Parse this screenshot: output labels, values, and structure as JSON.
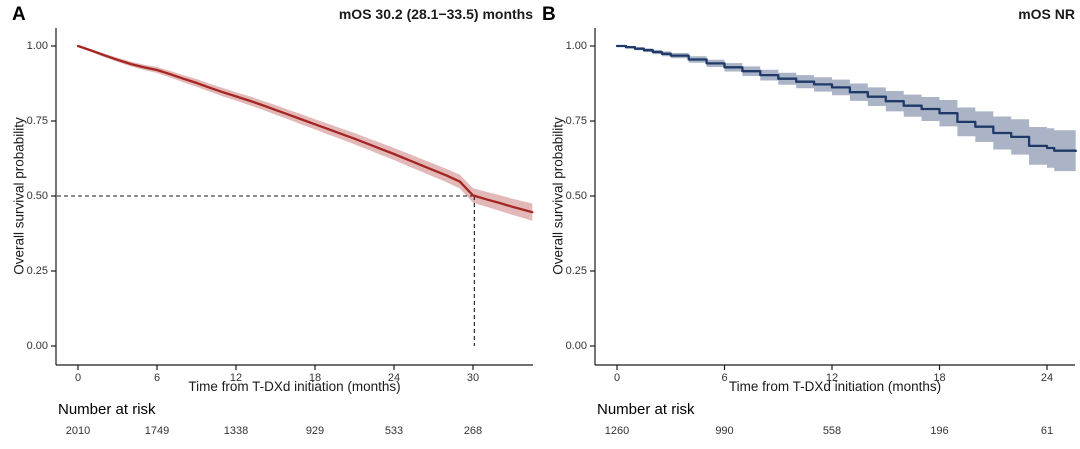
{
  "figure": {
    "background": "#ffffff",
    "axis_color": "#1a1a1a",
    "tick_text_color": "#333333",
    "dashed_line_color": "#1a1a1a"
  },
  "chart_data": [
    {
      "id": "A",
      "panel_label": "A",
      "type": "line",
      "subtype": "kaplan-meier",
      "title": "mOS 30.2 (28.1−33.5) months",
      "xlabel": "Time from T-DXd initiation (months)",
      "ylabel": "Overall survival probability",
      "x_ticks": [
        0,
        6,
        12,
        18,
        24,
        30
      ],
      "y_ticks": [
        {
          "value": 1.0,
          "label": "1.00"
        },
        {
          "value": 0.75,
          "label": "0.75"
        },
        {
          "value": 0.5,
          "label": "0.50"
        },
        {
          "value": 0.25,
          "label": "0.25"
        },
        {
          "value": 0.0,
          "label": "0.00"
        }
      ],
      "xlim": [
        0,
        34.5
      ],
      "ylim": [
        0,
        1
      ],
      "grid": false,
      "legend": "none",
      "line_color": "#a42521",
      "band_color": "#a42521",
      "band_opacity": 0.32,
      "step": false,
      "median_lines": {
        "time": 30.1,
        "survival": 0.5
      },
      "series": [
        {
          "name": "T-DXd",
          "points_t_p_ci": [
            [
              0,
              1.0,
              0.002
            ],
            [
              1,
              0.985,
              0.004
            ],
            [
              2,
              0.969,
              0.006
            ],
            [
              3,
              0.954,
              0.007
            ],
            [
              4,
              0.94,
              0.008
            ],
            [
              5,
              0.929,
              0.009
            ],
            [
              6,
              0.92,
              0.01
            ],
            [
              7,
              0.906,
              0.011
            ],
            [
              8,
              0.891,
              0.012
            ],
            [
              9,
              0.877,
              0.013
            ],
            [
              10,
              0.861,
              0.013
            ],
            [
              11,
              0.846,
              0.014
            ],
            [
              12,
              0.832,
              0.014
            ],
            [
              13,
              0.818,
              0.015
            ],
            [
              14,
              0.803,
              0.015
            ],
            [
              15,
              0.787,
              0.016
            ],
            [
              16,
              0.771,
              0.016
            ],
            [
              17,
              0.755,
              0.017
            ],
            [
              18,
              0.739,
              0.017
            ],
            [
              19,
              0.723,
              0.018
            ],
            [
              20,
              0.707,
              0.018
            ],
            [
              21,
              0.691,
              0.019
            ],
            [
              22,
              0.674,
              0.019
            ],
            [
              23,
              0.657,
              0.02
            ],
            [
              24,
              0.64,
              0.02
            ],
            [
              25,
              0.622,
              0.021
            ],
            [
              26,
              0.604,
              0.021
            ],
            [
              27,
              0.586,
              0.022
            ],
            [
              28,
              0.568,
              0.022
            ],
            [
              29,
              0.548,
              0.023
            ],
            [
              30,
              0.502,
              0.024
            ],
            [
              31,
              0.489,
              0.025
            ],
            [
              32,
              0.477,
              0.026
            ],
            [
              33,
              0.464,
              0.027
            ],
            [
              34,
              0.452,
              0.028
            ],
            [
              34.5,
              0.446,
              0.029
            ]
          ]
        }
      ],
      "risk_table": {
        "label": "Number at risk",
        "times": [
          0,
          6,
          12,
          18,
          24,
          30
        ],
        "counts": [
          "2010",
          "1749",
          "1338",
          "929",
          "533",
          "268"
        ]
      }
    },
    {
      "id": "B",
      "panel_label": "B",
      "type": "line",
      "subtype": "kaplan-meier",
      "title": "mOS NR",
      "xlabel": "Time from T-DXd initiation (months)",
      "ylabel": "Overall survival probability",
      "x_ticks": [
        0,
        6,
        12,
        18,
        24
      ],
      "y_ticks": [
        {
          "value": 1.0,
          "label": "1.00"
        },
        {
          "value": 0.75,
          "label": "0.75"
        },
        {
          "value": 0.5,
          "label": "0.50"
        },
        {
          "value": 0.25,
          "label": "0.25"
        },
        {
          "value": 0.0,
          "label": "0.00"
        }
      ],
      "xlim": [
        0,
        25.6
      ],
      "ylim": [
        0,
        1
      ],
      "grid": false,
      "legend": "none",
      "line_color": "#1f3a68",
      "band_color": "#1f3a68",
      "band_opacity": 0.38,
      "step": true,
      "median_lines": null,
      "series": [
        {
          "name": "T-DXd",
          "points_t_p_ci": [
            [
              0,
              1.0,
              0.003
            ],
            [
              0.5,
              0.996,
              0.004
            ],
            [
              1,
              0.991,
              0.005
            ],
            [
              1.5,
              0.986,
              0.006
            ],
            [
              2,
              0.98,
              0.007
            ],
            [
              2.5,
              0.974,
              0.008
            ],
            [
              3,
              0.968,
              0.009
            ],
            [
              4,
              0.955,
              0.011
            ],
            [
              5,
              0.942,
              0.012
            ],
            [
              6,
              0.929,
              0.014
            ],
            [
              7,
              0.916,
              0.016
            ],
            [
              8,
              0.903,
              0.018
            ],
            [
              9,
              0.891,
              0.02
            ],
            [
              10,
              0.881,
              0.022
            ],
            [
              11,
              0.872,
              0.024
            ],
            [
              12,
              0.862,
              0.026
            ],
            [
              13,
              0.846,
              0.029
            ],
            [
              14,
              0.831,
              0.031
            ],
            [
              15,
              0.816,
              0.034
            ],
            [
              16,
              0.801,
              0.037
            ],
            [
              17,
              0.79,
              0.04
            ],
            [
              18,
              0.776,
              0.044
            ],
            [
              19,
              0.747,
              0.048
            ],
            [
              20,
              0.731,
              0.051
            ],
            [
              21,
              0.71,
              0.055
            ],
            [
              22,
              0.697,
              0.059
            ],
            [
              23,
              0.667,
              0.063
            ],
            [
              24,
              0.66,
              0.066
            ],
            [
              24.4,
              0.651,
              0.068
            ],
            [
              25.6,
              0.65,
              0.07
            ]
          ]
        }
      ],
      "risk_table": {
        "label": "Number at risk",
        "times": [
          0,
          6,
          12,
          18,
          24
        ],
        "counts": [
          "1260",
          "990",
          "558",
          "196",
          "61"
        ]
      }
    }
  ]
}
